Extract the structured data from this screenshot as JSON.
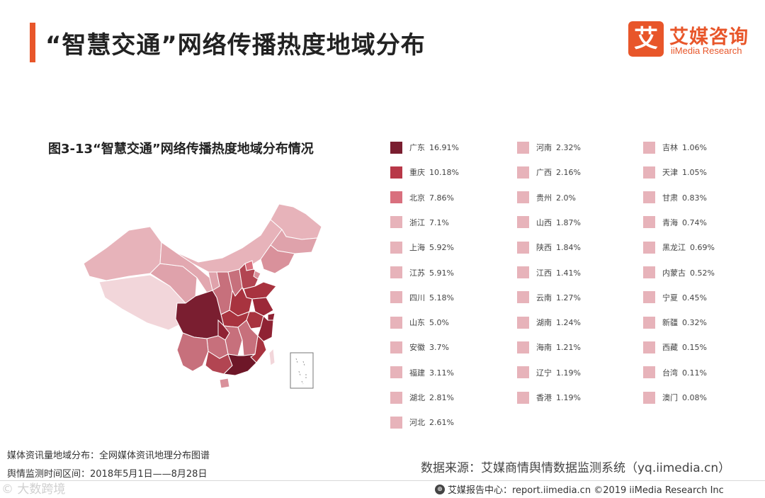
{
  "header": {
    "title": "“智慧交通”网络传播热度地域分布",
    "brand_mark": "艾",
    "brand_cn": "艾媒咨询",
    "brand_en": "iiMedia Research"
  },
  "colors": {
    "accent": "#e8562a",
    "level_1": "#7a1e30",
    "level_2": "#b83848",
    "level_3": "#d9707e",
    "level_4": "#e7b3ba"
  },
  "chart_data": {
    "type": "choropleth-map",
    "title": "图3-13“智慧交通”网络传播热度地域分布情况",
    "unit": "%",
    "legend_placement": "right",
    "regions": [
      {
        "name": "广东",
        "label": "16.91%",
        "value": 16.91,
        "level": 1
      },
      {
        "name": "重庆",
        "label": "10.18%",
        "value": 10.18,
        "level": 2
      },
      {
        "name": "北京",
        "label": "7.86%",
        "value": 7.86,
        "level": 3
      },
      {
        "name": "浙江",
        "label": "7.1%",
        "value": 7.1,
        "level": 4
      },
      {
        "name": "上海",
        "label": "5.92%",
        "value": 5.92,
        "level": 4
      },
      {
        "name": "江苏",
        "label": "5.91%",
        "value": 5.91,
        "level": 4
      },
      {
        "name": "四川",
        "label": "5.18%",
        "value": 5.18,
        "level": 4
      },
      {
        "name": "山东",
        "label": "5.0%",
        "value": 5.0,
        "level": 4
      },
      {
        "name": "安徽",
        "label": "3.7%",
        "value": 3.7,
        "level": 4
      },
      {
        "name": "福建",
        "label": "3.11%",
        "value": 3.11,
        "level": 4
      },
      {
        "name": "湖北",
        "label": "2.81%",
        "value": 2.81,
        "level": 4
      },
      {
        "name": "河北",
        "label": "2.61%",
        "value": 2.61,
        "level": 4
      },
      {
        "name": "河南",
        "label": "2.32%",
        "value": 2.32,
        "level": 4
      },
      {
        "name": "广西",
        "label": "2.16%",
        "value": 2.16,
        "level": 4
      },
      {
        "name": "贵州",
        "label": "2.0%",
        "value": 2.0,
        "level": 4
      },
      {
        "name": "山西",
        "label": "1.87%",
        "value": 1.87,
        "level": 4
      },
      {
        "name": "陕西",
        "label": "1.84%",
        "value": 1.84,
        "level": 4
      },
      {
        "name": "江西",
        "label": "1.41%",
        "value": 1.41,
        "level": 4
      },
      {
        "name": "云南",
        "label": "1.27%",
        "value": 1.27,
        "level": 4
      },
      {
        "name": "湖南",
        "label": "1.24%",
        "value": 1.24,
        "level": 4
      },
      {
        "name": "海南",
        "label": "1.21%",
        "value": 1.21,
        "level": 4
      },
      {
        "name": "辽宁",
        "label": "1.19%",
        "value": 1.19,
        "level": 4
      },
      {
        "name": "香港",
        "label": "1.19%",
        "value": 1.19,
        "level": 4
      },
      {
        "name": "吉林",
        "label": "1.06%",
        "value": 1.06,
        "level": 4
      },
      {
        "name": "天津",
        "label": "1.05%",
        "value": 1.05,
        "level": 4
      },
      {
        "name": "甘肃",
        "label": "0.83%",
        "value": 0.83,
        "level": 4
      },
      {
        "name": "青海",
        "label": "0.74%",
        "value": 0.74,
        "level": 4
      },
      {
        "name": "黑龙江",
        "label": "0.69%",
        "value": 0.69,
        "level": 4
      },
      {
        "name": "内蒙古",
        "label": "0.52%",
        "value": 0.52,
        "level": 4
      },
      {
        "name": "宁夏",
        "label": "0.45%",
        "value": 0.45,
        "level": 4
      },
      {
        "name": "新疆",
        "label": "0.32%",
        "value": 0.32,
        "level": 4
      },
      {
        "name": "西藏",
        "label": "0.15%",
        "value": 0.15,
        "level": 4
      },
      {
        "name": "台湾",
        "label": "0.11%",
        "value": 0.11,
        "level": 4
      },
      {
        "name": "澳门",
        "label": "0.08%",
        "value": 0.08,
        "level": 4
      }
    ]
  },
  "footnotes": {
    "line1": "媒体资讯量地域分布：全网媒体资讯地理分布图谱",
    "line2": "舆情监测时间区间：2018年5月1日——8月28日"
  },
  "source": "数据来源：艾媒商情舆情数据监测系统（yq.iimedia.cn）",
  "footer": {
    "icon": "globe-icon",
    "text": "艾媒报告中心：report.iimedia.cn  ©2019  iiMedia Research  Inc"
  },
  "watermark": "©  大数跨境"
}
